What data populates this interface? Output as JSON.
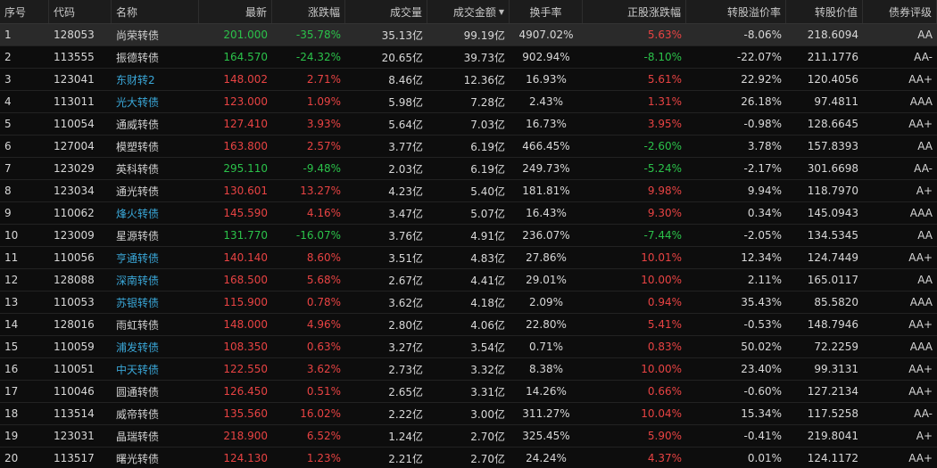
{
  "columns": [
    {
      "key": "idx",
      "label": "序号"
    },
    {
      "key": "code",
      "label": "代码"
    },
    {
      "key": "name",
      "label": "名称"
    },
    {
      "key": "last",
      "label": "最新"
    },
    {
      "key": "chg_pct",
      "label": "涨跌幅"
    },
    {
      "key": "volume",
      "label": "成交量"
    },
    {
      "key": "amount",
      "label": "成交金额",
      "sorted": "desc",
      "sort_icon": "sort-desc-triangle-icon"
    },
    {
      "key": "turnover",
      "label": "换手率"
    },
    {
      "key": "stock_chg",
      "label": "正股涨跌幅"
    },
    {
      "key": "premium",
      "label": "转股溢价率"
    },
    {
      "key": "conv_value",
      "label": "转股价值"
    },
    {
      "key": "rating",
      "label": "债券评级"
    }
  ],
  "colors": {
    "up": "#e84343",
    "down": "#2bc24a",
    "link": "#3aa7d8",
    "highlight_border": "#e0302a",
    "background": "#0d0d0d",
    "header_background": "#1c1c1c",
    "selected_row": "#2a2a2a"
  },
  "selected_row": 0,
  "highlighted_cells": [
    "amount",
    "turnover"
  ],
  "rows": [
    {
      "idx": "1",
      "code": "128053",
      "name": "尚荣转债",
      "name_style": "plain",
      "last": "201.000",
      "last_dir": "down",
      "chg_pct": "-35.78%",
      "chg_dir": "down",
      "volume": "35.13亿",
      "amount": "99.19亿",
      "turnover": "4907.02%",
      "stock_chg": "5.63%",
      "stock_dir": "up",
      "premium": "-8.06%",
      "conv_value": "218.6094",
      "rating": "AA"
    },
    {
      "idx": "2",
      "code": "113555",
      "name": "振德转债",
      "name_style": "plain",
      "last": "164.570",
      "last_dir": "down",
      "chg_pct": "-24.32%",
      "chg_dir": "down",
      "volume": "20.65亿",
      "amount": "39.73亿",
      "turnover": "902.94%",
      "stock_chg": "-8.10%",
      "stock_dir": "down",
      "premium": "-22.07%",
      "conv_value": "211.1776",
      "rating": "AA-"
    },
    {
      "idx": "3",
      "code": "123041",
      "name": "东财转2",
      "name_style": "link",
      "last": "148.002",
      "last_dir": "up",
      "chg_pct": "2.71%",
      "chg_dir": "up",
      "volume": "8.46亿",
      "amount": "12.36亿",
      "turnover": "16.93%",
      "stock_chg": "5.61%",
      "stock_dir": "up",
      "premium": "22.92%",
      "conv_value": "120.4056",
      "rating": "AA+"
    },
    {
      "idx": "4",
      "code": "113011",
      "name": "光大转债",
      "name_style": "link",
      "last": "123.000",
      "last_dir": "up",
      "chg_pct": "1.09%",
      "chg_dir": "up",
      "volume": "5.98亿",
      "amount": "7.28亿",
      "turnover": "2.43%",
      "stock_chg": "1.31%",
      "stock_dir": "up",
      "premium": "26.18%",
      "conv_value": "97.4811",
      "rating": "AAA"
    },
    {
      "idx": "5",
      "code": "110054",
      "name": "通威转债",
      "name_style": "plain",
      "last": "127.410",
      "last_dir": "up",
      "chg_pct": "3.93%",
      "chg_dir": "up",
      "volume": "5.64亿",
      "amount": "7.03亿",
      "turnover": "16.73%",
      "stock_chg": "3.95%",
      "stock_dir": "up",
      "premium": "-0.98%",
      "conv_value": "128.6645",
      "rating": "AA+"
    },
    {
      "idx": "6",
      "code": "127004",
      "name": "模塑转债",
      "name_style": "plain",
      "last": "163.800",
      "last_dir": "up",
      "chg_pct": "2.57%",
      "chg_dir": "up",
      "volume": "3.77亿",
      "amount": "6.19亿",
      "turnover": "466.45%",
      "stock_chg": "-2.60%",
      "stock_dir": "down",
      "premium": "3.78%",
      "conv_value": "157.8393",
      "rating": "AA"
    },
    {
      "idx": "7",
      "code": "123029",
      "name": "英科转债",
      "name_style": "plain",
      "last": "295.110",
      "last_dir": "down",
      "chg_pct": "-9.48%",
      "chg_dir": "down",
      "volume": "2.03亿",
      "amount": "6.19亿",
      "turnover": "249.73%",
      "stock_chg": "-5.24%",
      "stock_dir": "down",
      "premium": "-2.17%",
      "conv_value": "301.6698",
      "rating": "AA-"
    },
    {
      "idx": "8",
      "code": "123034",
      "name": "通光转债",
      "name_style": "plain",
      "last": "130.601",
      "last_dir": "up",
      "chg_pct": "13.27%",
      "chg_dir": "up",
      "volume": "4.23亿",
      "amount": "5.40亿",
      "turnover": "181.81%",
      "stock_chg": "9.98%",
      "stock_dir": "up",
      "premium": "9.94%",
      "conv_value": "118.7970",
      "rating": "A+"
    },
    {
      "idx": "9",
      "code": "110062",
      "name": "烽火转债",
      "name_style": "link",
      "last": "145.590",
      "last_dir": "up",
      "chg_pct": "4.16%",
      "chg_dir": "up",
      "volume": "3.47亿",
      "amount": "5.07亿",
      "turnover": "16.43%",
      "stock_chg": "9.30%",
      "stock_dir": "up",
      "premium": "0.34%",
      "conv_value": "145.0943",
      "rating": "AAA"
    },
    {
      "idx": "10",
      "code": "123009",
      "name": "星源转债",
      "name_style": "plain",
      "last": "131.770",
      "last_dir": "down",
      "chg_pct": "-16.07%",
      "chg_dir": "down",
      "volume": "3.76亿",
      "amount": "4.91亿",
      "turnover": "236.07%",
      "stock_chg": "-7.44%",
      "stock_dir": "down",
      "premium": "-2.05%",
      "conv_value": "134.5345",
      "rating": "AA"
    },
    {
      "idx": "11",
      "code": "110056",
      "name": "亨通转债",
      "name_style": "link",
      "last": "140.140",
      "last_dir": "up",
      "chg_pct": "8.60%",
      "chg_dir": "up",
      "volume": "3.51亿",
      "amount": "4.83亿",
      "turnover": "27.86%",
      "stock_chg": "10.01%",
      "stock_dir": "up",
      "premium": "12.34%",
      "conv_value": "124.7449",
      "rating": "AA+"
    },
    {
      "idx": "12",
      "code": "128088",
      "name": "深南转债",
      "name_style": "link",
      "last": "168.500",
      "last_dir": "up",
      "chg_pct": "5.68%",
      "chg_dir": "up",
      "volume": "2.67亿",
      "amount": "4.41亿",
      "turnover": "29.01%",
      "stock_chg": "10.00%",
      "stock_dir": "up",
      "premium": "2.11%",
      "conv_value": "165.0117",
      "rating": "AA"
    },
    {
      "idx": "13",
      "code": "110053",
      "name": "苏银转债",
      "name_style": "link",
      "last": "115.900",
      "last_dir": "up",
      "chg_pct": "0.78%",
      "chg_dir": "up",
      "volume": "3.62亿",
      "amount": "4.18亿",
      "turnover": "2.09%",
      "stock_chg": "0.94%",
      "stock_dir": "up",
      "premium": "35.43%",
      "conv_value": "85.5820",
      "rating": "AAA"
    },
    {
      "idx": "14",
      "code": "128016",
      "name": "雨虹转债",
      "name_style": "plain",
      "last": "148.000",
      "last_dir": "up",
      "chg_pct": "4.96%",
      "chg_dir": "up",
      "volume": "2.80亿",
      "amount": "4.06亿",
      "turnover": "22.80%",
      "stock_chg": "5.41%",
      "stock_dir": "up",
      "premium": "-0.53%",
      "conv_value": "148.7946",
      "rating": "AA+"
    },
    {
      "idx": "15",
      "code": "110059",
      "name": "浦发转债",
      "name_style": "link",
      "last": "108.350",
      "last_dir": "up",
      "chg_pct": "0.63%",
      "chg_dir": "up",
      "volume": "3.27亿",
      "amount": "3.54亿",
      "turnover": "0.71%",
      "stock_chg": "0.83%",
      "stock_dir": "up",
      "premium": "50.02%",
      "conv_value": "72.2259",
      "rating": "AAA"
    },
    {
      "idx": "16",
      "code": "110051",
      "name": "中天转债",
      "name_style": "link",
      "last": "122.550",
      "last_dir": "up",
      "chg_pct": "3.62%",
      "chg_dir": "up",
      "volume": "2.73亿",
      "amount": "3.32亿",
      "turnover": "8.38%",
      "stock_chg": "10.00%",
      "stock_dir": "up",
      "premium": "23.40%",
      "conv_value": "99.3131",
      "rating": "AA+"
    },
    {
      "idx": "17",
      "code": "110046",
      "name": "圆通转债",
      "name_style": "plain",
      "last": "126.450",
      "last_dir": "up",
      "chg_pct": "0.51%",
      "chg_dir": "up",
      "volume": "2.65亿",
      "amount": "3.31亿",
      "turnover": "14.26%",
      "stock_chg": "0.66%",
      "stock_dir": "up",
      "premium": "-0.60%",
      "conv_value": "127.2134",
      "rating": "AA+"
    },
    {
      "idx": "18",
      "code": "113514",
      "name": "威帝转债",
      "name_style": "plain",
      "last": "135.560",
      "last_dir": "up",
      "chg_pct": "16.02%",
      "chg_dir": "up",
      "volume": "2.22亿",
      "amount": "3.00亿",
      "turnover": "311.27%",
      "stock_chg": "10.04%",
      "stock_dir": "up",
      "premium": "15.34%",
      "conv_value": "117.5258",
      "rating": "AA-"
    },
    {
      "idx": "19",
      "code": "123031",
      "name": "晶瑞转债",
      "name_style": "plain",
      "last": "218.900",
      "last_dir": "up",
      "chg_pct": "6.52%",
      "chg_dir": "up",
      "volume": "1.24亿",
      "amount": "2.70亿",
      "turnover": "325.45%",
      "stock_chg": "5.90%",
      "stock_dir": "up",
      "premium": "-0.41%",
      "conv_value": "219.8041",
      "rating": "A+"
    },
    {
      "idx": "20",
      "code": "113517",
      "name": "曙光转债",
      "name_style": "plain",
      "last": "124.130",
      "last_dir": "up",
      "chg_pct": "1.23%",
      "chg_dir": "up",
      "volume": "2.21亿",
      "amount": "2.70亿",
      "turnover": "24.24%",
      "stock_chg": "4.37%",
      "stock_dir": "up",
      "premium": "0.01%",
      "conv_value": "124.1172",
      "rating": "AA+"
    }
  ]
}
